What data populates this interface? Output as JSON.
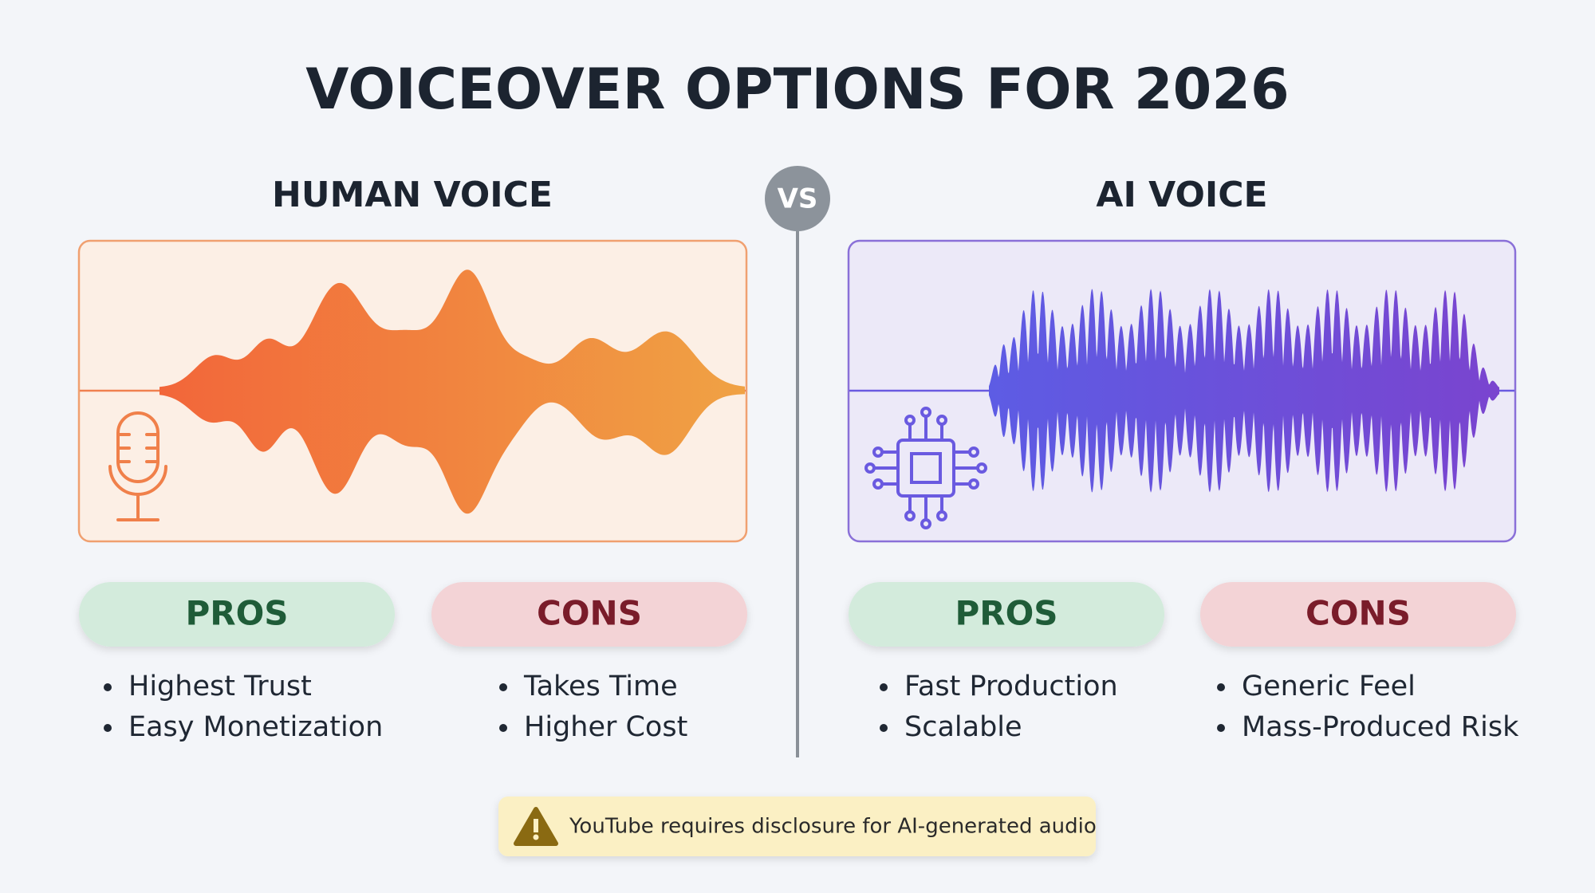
{
  "title": "VOICEOVER OPTIONS FOR 2026",
  "vs": "VS",
  "human": {
    "label": "HUMAN VOICE",
    "pros": {
      "heading": "PROS",
      "items": [
        "Highest Trust",
        "Easy Monetization"
      ]
    },
    "cons": {
      "heading": "CONS",
      "items": [
        "Takes Time",
        "Higher Cost"
      ]
    }
  },
  "ai": {
    "label": "AI VOICE",
    "pros": {
      "heading": "PROS",
      "items": [
        "Fast Production",
        "Scalable"
      ]
    },
    "cons": {
      "heading": "CONS",
      "items": [
        "Generic Feel",
        "Mass-Produced Risk"
      ]
    }
  },
  "note": "YouTube requires disclosure for AI-generated audio"
}
